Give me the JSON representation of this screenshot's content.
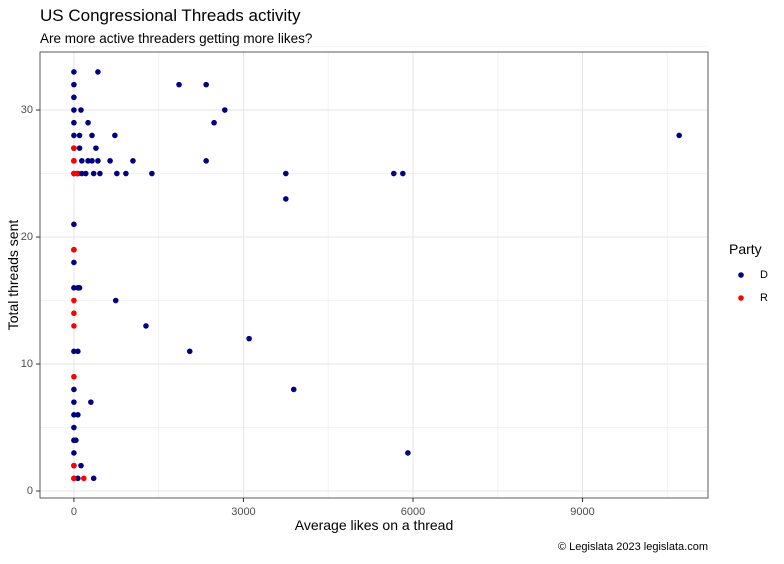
{
  "chart_data": {
    "type": "scatter",
    "title": "US Congressional Threads activity",
    "subtitle": "Are more active threaders getting more likes?",
    "x_label": "Average likes on a thread",
    "y_label": "Total threads sent",
    "legend_title": "Party",
    "caption": "© Legislata 2023 legislata.com",
    "xlim": [
      -600,
      11220
    ],
    "xticks": [
      0,
      3000,
      6000,
      9000
    ],
    "ylim": [
      -0.55,
      34.57
    ],
    "yticks": [
      0,
      10,
      20,
      30
    ],
    "grid": true,
    "series": [
      {
        "name": "D",
        "color": "#000080",
        "x": [
          0,
          425,
          0,
          1860,
          2340,
          0,
          0,
          125,
          2670,
          0,
          250,
          2480,
          0,
          100,
          320,
          725,
          10710,
          0,
          100,
          390,
          0,
          140,
          250,
          320,
          425,
          640,
          1045,
          2340,
          0,
          70,
          140,
          210,
          350,
          460,
          760,
          920,
          1380,
          3750,
          5660,
          5820,
          3750,
          0,
          0,
          0,
          0,
          70,
          100,
          740,
          1275,
          3100,
          0,
          70,
          2050,
          0,
          3890,
          0,
          300,
          0,
          70,
          0,
          0,
          35,
          0,
          5910,
          0,
          125,
          0,
          70,
          350
        ],
        "y": [
          33,
          33,
          32,
          32,
          32,
          31,
          30,
          30,
          30,
          29,
          29,
          29,
          28,
          28,
          28,
          28,
          28,
          27,
          27,
          27,
          26,
          26,
          26,
          26,
          26,
          26,
          26,
          26,
          25,
          25,
          25,
          25,
          25,
          25,
          25,
          25,
          25,
          25,
          25,
          25,
          23,
          21,
          19,
          18,
          16,
          16,
          16,
          15,
          13,
          12,
          11,
          11,
          11,
          8,
          8,
          7,
          7,
          6,
          6,
          5,
          4,
          4,
          3,
          3,
          2,
          2,
          1,
          1,
          1
        ]
      },
      {
        "name": "R",
        "color": "#ff0000",
        "x": [
          0,
          0,
          0,
          50,
          0,
          0,
          0,
          0,
          0,
          0,
          0,
          175
        ],
        "y": [
          27,
          26,
          25,
          25,
          19,
          15,
          14,
          13,
          9,
          2,
          1,
          1
        ]
      }
    ]
  }
}
